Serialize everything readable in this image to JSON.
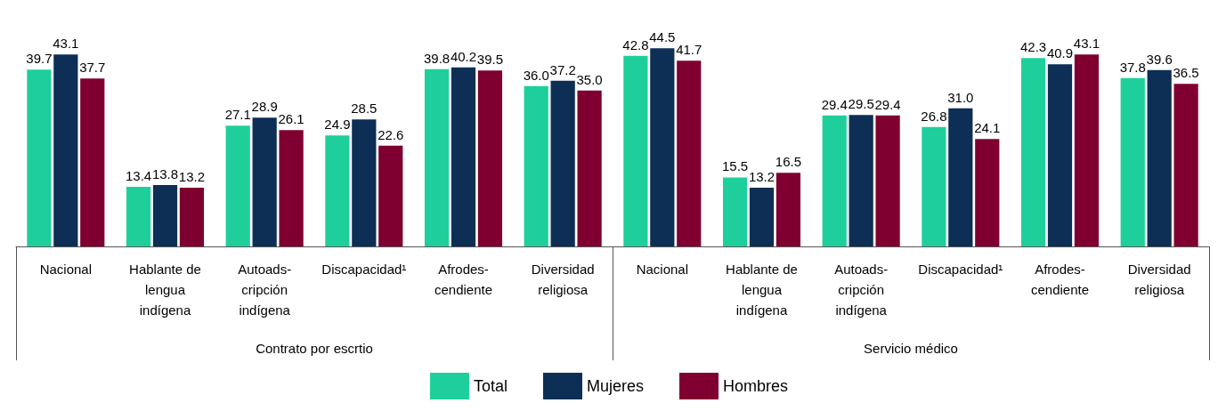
{
  "chart_data": {
    "type": "bar",
    "categories": [
      "Nacional",
      "Hablante de\nlengua\nindígena",
      "Autoads-\ncripción\nindígena",
      "Discapacidad¹",
      "Afrodes-\ncendiente",
      "Diversidad\nreligiosa",
      "Nacional",
      "Hablante de\nlengua\nindígena",
      "Autoads-\ncripción\nindígena",
      "Discapacidad¹",
      "Afrodes-\ncendiente",
      "Diversidad\nreligiosa"
    ],
    "series": [
      {
        "name": "Total",
        "color": "#1fcf9b",
        "values": [
          39.7,
          13.4,
          27.1,
          24.9,
          39.8,
          36.0,
          42.8,
          15.5,
          29.4,
          26.8,
          42.3,
          37.8
        ],
        "value_labels": [
          "39.7",
          "13.4",
          "27.1",
          "24.9",
          "39.8",
          "36.0",
          "42.8",
          "15.5",
          "29.4",
          "26.8",
          "42.3",
          "37.8"
        ]
      },
      {
        "name": "Mujeres",
        "color": "#0d2f55",
        "values": [
          43.1,
          13.8,
          28.9,
          28.5,
          40.2,
          37.2,
          44.5,
          13.2,
          29.5,
          31.0,
          40.9,
          39.6
        ],
        "value_labels": [
          "43.1",
          "13.8",
          "28.9",
          "28.5",
          "40.2",
          "37.2",
          "44.5",
          "13.2",
          "29.5",
          "31.0",
          "40.9",
          "39.6"
        ]
      },
      {
        "name": "Hombres",
        "color": "#7f0030",
        "values": [
          37.7,
          13.2,
          26.1,
          22.6,
          39.5,
          35.0,
          41.7,
          16.5,
          29.4,
          24.1,
          43.1,
          36.5
        ],
        "value_labels": [
          "37.7",
          "13.2",
          "26.1",
          "22.6",
          "39.5",
          "35.0",
          "41.7",
          "16.5",
          "29.4",
          "24.1",
          "43.1",
          "36.5"
        ]
      }
    ],
    "annotations": [
      "Contrato por escrtio",
      "Servicio médico"
    ],
    "grid": false,
    "legend": "bottom"
  }
}
